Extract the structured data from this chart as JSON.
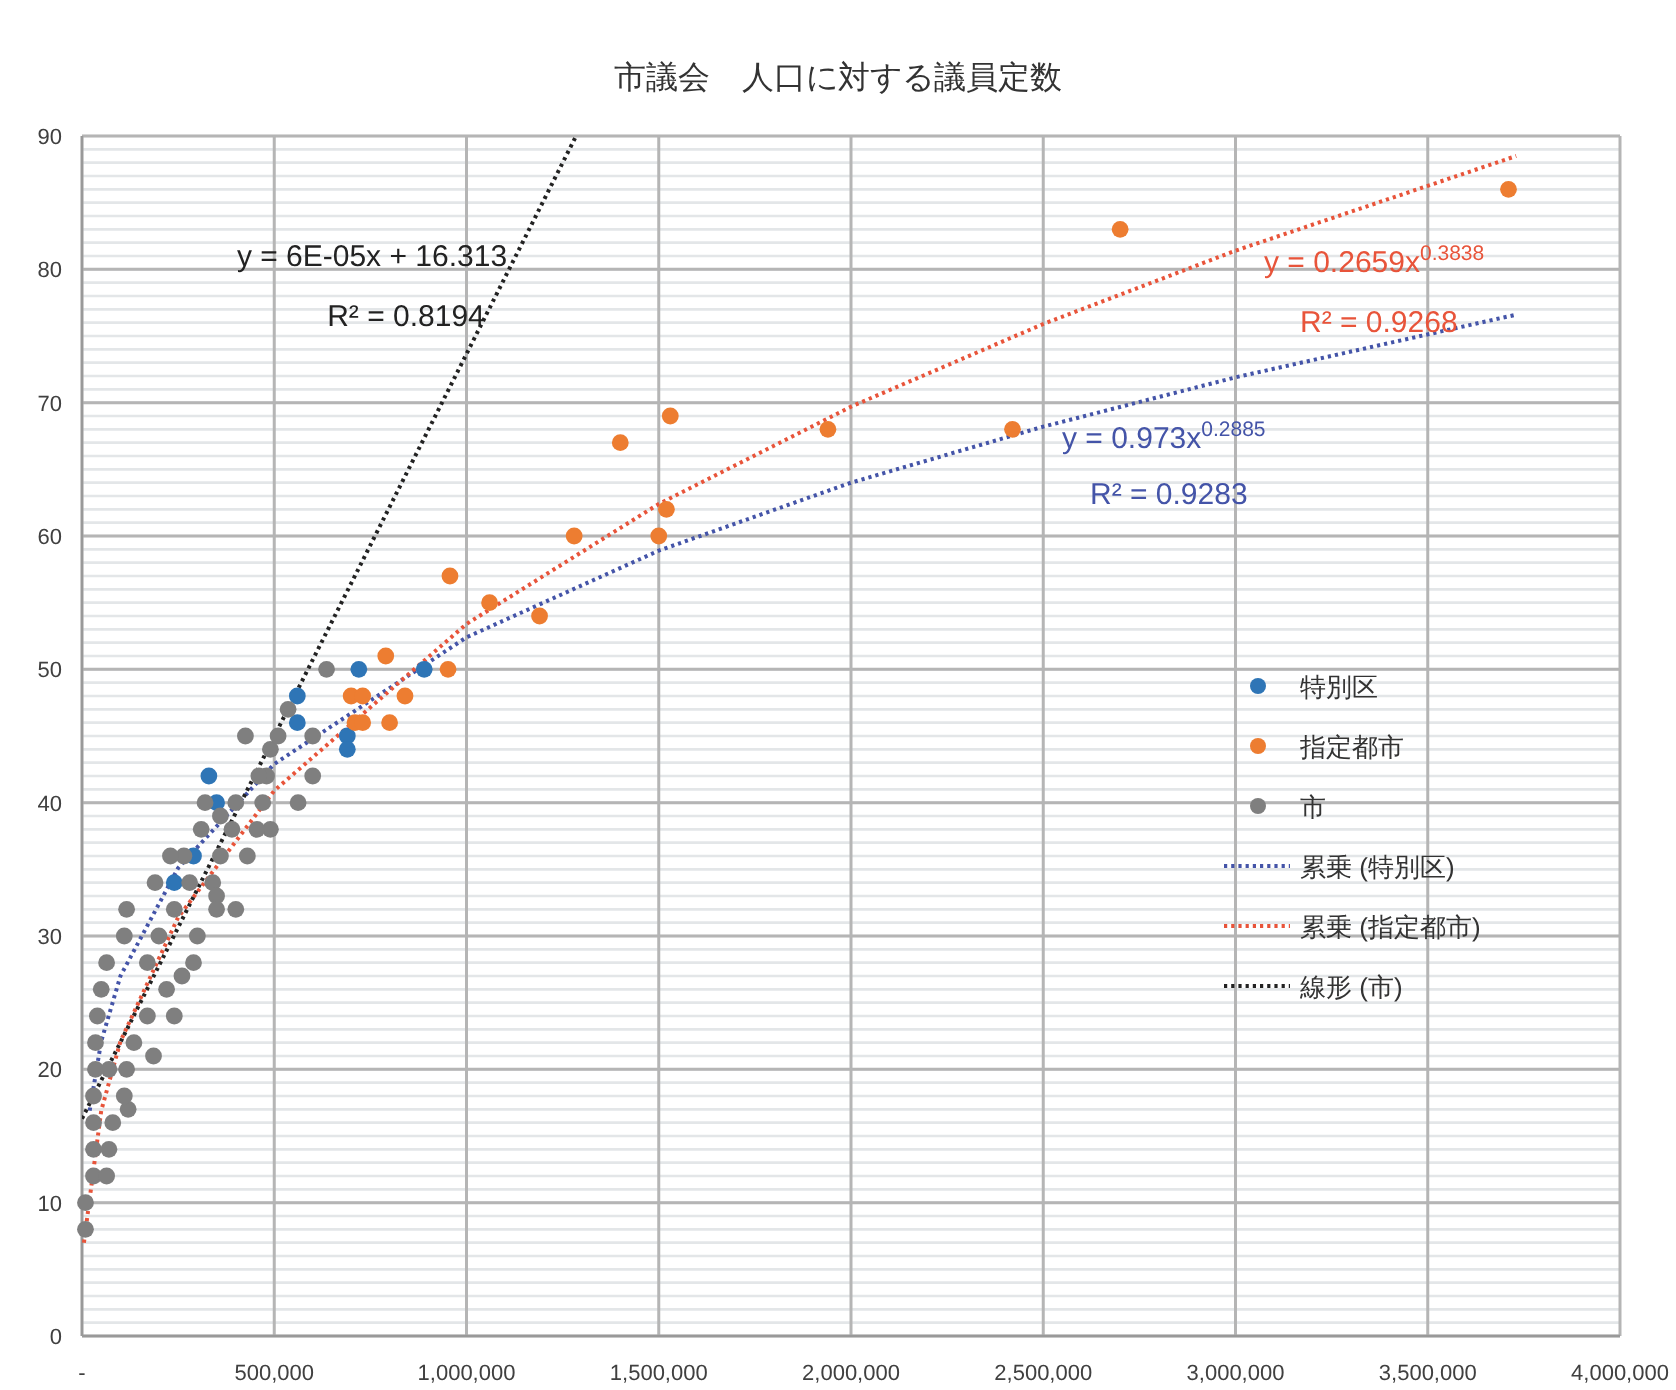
{
  "chart_data": {
    "type": "scatter",
    "title": "市議会　人口に対する議員定数",
    "xlim": [
      0,
      4000000
    ],
    "ylim": [
      0,
      90
    ],
    "xticks": [
      {
        "value": 0,
        "label": "-"
      },
      {
        "value": 500000,
        "label": "500,000"
      },
      {
        "value": 1000000,
        "label": "1,000,000"
      },
      {
        "value": 1500000,
        "label": "1,500,000"
      },
      {
        "value": 2000000,
        "label": "2,000,000"
      },
      {
        "value": 2500000,
        "label": "2,500,000"
      },
      {
        "value": 3000000,
        "label": "3,000,000"
      },
      {
        "value": 3500000,
        "label": "3,500,000"
      },
      {
        "value": 4000000,
        "label": "4,000,000"
      }
    ],
    "yticks": [
      0,
      10,
      20,
      30,
      40,
      50,
      60,
      70,
      80,
      90
    ],
    "grid": true,
    "legend": "right",
    "marker": "circle",
    "series": [
      {
        "name": "特別区",
        "color": "#2e75b6",
        "x": [
          720000,
          890000,
          560000,
          560000,
          690000,
          690000,
          330000,
          350000,
          290000,
          240000
        ],
        "values": [
          50,
          50,
          48,
          46,
          45,
          44,
          42,
          40,
          36,
          34
        ]
      },
      {
        "name": "指定都市",
        "color": "#ed7d31",
        "x": [
          3710000,
          2700000,
          2420000,
          1940000,
          1530000,
          1400000,
          1520000,
          1500000,
          1280000,
          957000,
          1060000,
          1190000,
          952000,
          790000,
          840000,
          700000,
          730000,
          710000,
          730000,
          800000
        ],
        "values": [
          86,
          83,
          68,
          68,
          69,
          67,
          62,
          60,
          60,
          57,
          55,
          54,
          50,
          51,
          48,
          48,
          48,
          46,
          46,
          46
        ]
      },
      {
        "name": "市",
        "color": "#7f7f7f",
        "x": [
          636000,
          536000,
          600000,
          425000,
          600000,
          562000,
          400000,
          300000,
          260000,
          240000,
          120000,
          9000,
          9000,
          490000,
          455000,
          490000,
          480000,
          460000,
          470000,
          400000,
          320000,
          360000,
          390000,
          310000,
          430000,
          360000,
          265000,
          230000,
          340000,
          190000,
          280000,
          350000,
          116000,
          240000,
          350000,
          110000,
          200000,
          64000,
          290000,
          170000,
          50000,
          220000,
          40000,
          170000,
          35000,
          135000,
          186000,
          35000,
          116000,
          70000,
          30000,
          110000,
          30000,
          80000,
          30000,
          70000,
          30000,
          64000,
          510000
        ],
        "values": [
          50,
          47,
          45,
          45,
          42,
          40,
          32,
          30,
          27,
          24,
          17,
          10,
          8,
          38,
          38,
          44,
          42,
          42,
          40,
          40,
          40,
          39,
          38,
          38,
          36,
          36,
          36,
          36,
          34,
          34,
          34,
          33,
          32,
          32,
          32,
          30,
          30,
          28,
          28,
          28,
          26,
          26,
          24,
          24,
          22,
          22,
          21,
          20,
          20,
          20,
          18,
          18,
          16,
          16,
          14,
          14,
          12,
          12,
          45
        ]
      },
      {
        "name": "累乗 (特別区)",
        "type": "line",
        "marker": "none",
        "line_style": "dotted",
        "color": "#4454a8",
        "x": [
          20000,
          50000,
          100000,
          250000,
          500000,
          1000000,
          1500000,
          2000000,
          2500000,
          3000000,
          3730000
        ],
        "values": [
          16.9,
          22.1,
          27.0,
          35.1,
          42.9,
          52.4,
          58.9,
          64.0,
          68.2,
          71.9,
          76.6
        ]
      },
      {
        "name": "累乗 (指定都市)",
        "type": "line",
        "marker": "none",
        "line_style": "dotted",
        "color": "#e8543a",
        "x": [
          5000,
          50000,
          100000,
          250000,
          500000,
          1000000,
          1500000,
          2000000,
          2500000,
          3000000,
          3730000
        ],
        "values": [
          7.0,
          16.9,
          22.1,
          31.4,
          40.9,
          53.4,
          62.4,
          69.7,
          75.9,
          81.4,
          88.5
        ]
      },
      {
        "name": "線形 (市)",
        "type": "line",
        "marker": "none",
        "line_style": "dotted",
        "color": "#222222",
        "x": [
          0,
          1285000
        ],
        "values": [
          16.3,
          90
        ]
      }
    ],
    "annotations": [
      "y = 0.973x$^{0.2885}$",
      "R² = 0.9283",
      "y = 0.2659x$^{0.3838}$",
      "R² = 0.9268",
      "y = 6E-05x + 16.313",
      "R² = 0.8194"
    ]
  }
}
